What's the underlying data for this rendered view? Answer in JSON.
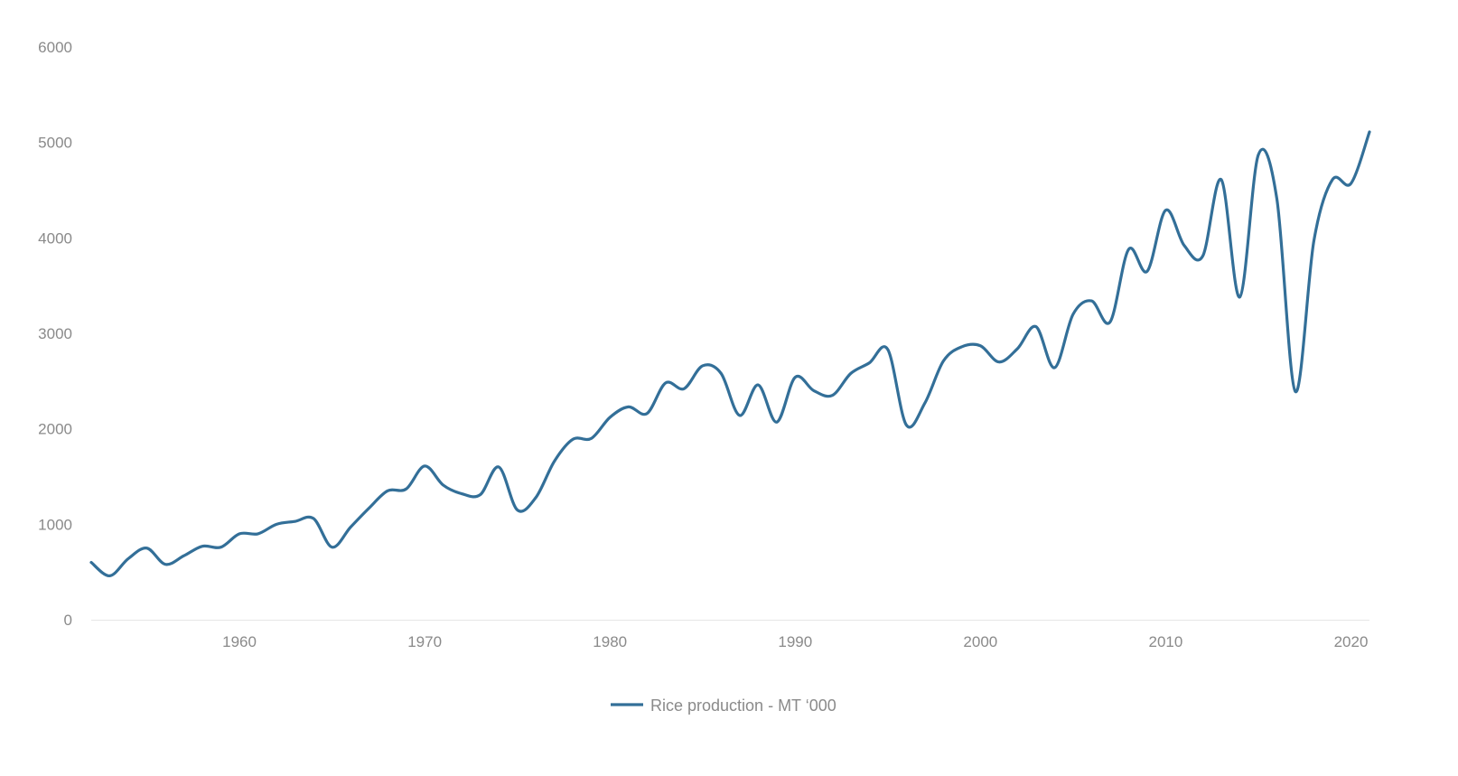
{
  "chart_data": {
    "type": "line",
    "title": "",
    "xlabel": "",
    "ylabel": "",
    "ylim": [
      0,
      6000
    ],
    "xlim": [
      1952,
      2021
    ],
    "yticks": [
      0,
      1000,
      2000,
      3000,
      4000,
      5000,
      6000
    ],
    "xticks": [
      1960,
      1970,
      1980,
      1990,
      2000,
      2010,
      2020
    ],
    "grid": false,
    "legend_position": "bottom-center",
    "colors": {
      "series": "#336f98",
      "tick": "#8a8a8a",
      "axis": "#e6e6e6"
    },
    "x": [
      1952,
      1953,
      1954,
      1955,
      1956,
      1957,
      1958,
      1959,
      1960,
      1961,
      1962,
      1963,
      1964,
      1965,
      1966,
      1967,
      1968,
      1969,
      1970,
      1971,
      1972,
      1973,
      1974,
      1975,
      1976,
      1977,
      1978,
      1979,
      1980,
      1981,
      1982,
      1983,
      1984,
      1985,
      1986,
      1987,
      1988,
      1989,
      1990,
      1991,
      1992,
      1993,
      1994,
      1995,
      1996,
      1997,
      1998,
      1999,
      2000,
      2001,
      2002,
      2003,
      2004,
      2005,
      2006,
      2007,
      2008,
      2009,
      2010,
      2011,
      2012,
      2013,
      2014,
      2015,
      2016,
      2017,
      2018,
      2019,
      2020,
      2021
    ],
    "series": [
      {
        "name": "Rice production - MT ‘000",
        "values": [
          600,
          460,
          640,
          750,
          580,
          670,
          770,
          760,
          900,
          900,
          1000,
          1030,
          1060,
          760,
          970,
          1170,
          1350,
          1370,
          1610,
          1410,
          1320,
          1310,
          1600,
          1150,
          1280,
          1660,
          1890,
          1900,
          2120,
          2230,
          2160,
          2480,
          2420,
          2660,
          2580,
          2140,
          2460,
          2070,
          2540,
          2400,
          2350,
          2580,
          2690,
          2830,
          2040,
          2270,
          2710,
          2860,
          2870,
          2700,
          2840,
          3070,
          2640,
          3200,
          3340,
          3120,
          3880,
          3650,
          4290,
          3920,
          3810,
          4610,
          3380,
          4870,
          4410,
          2390,
          3970,
          4610,
          4570,
          5110
        ]
      }
    ]
  }
}
